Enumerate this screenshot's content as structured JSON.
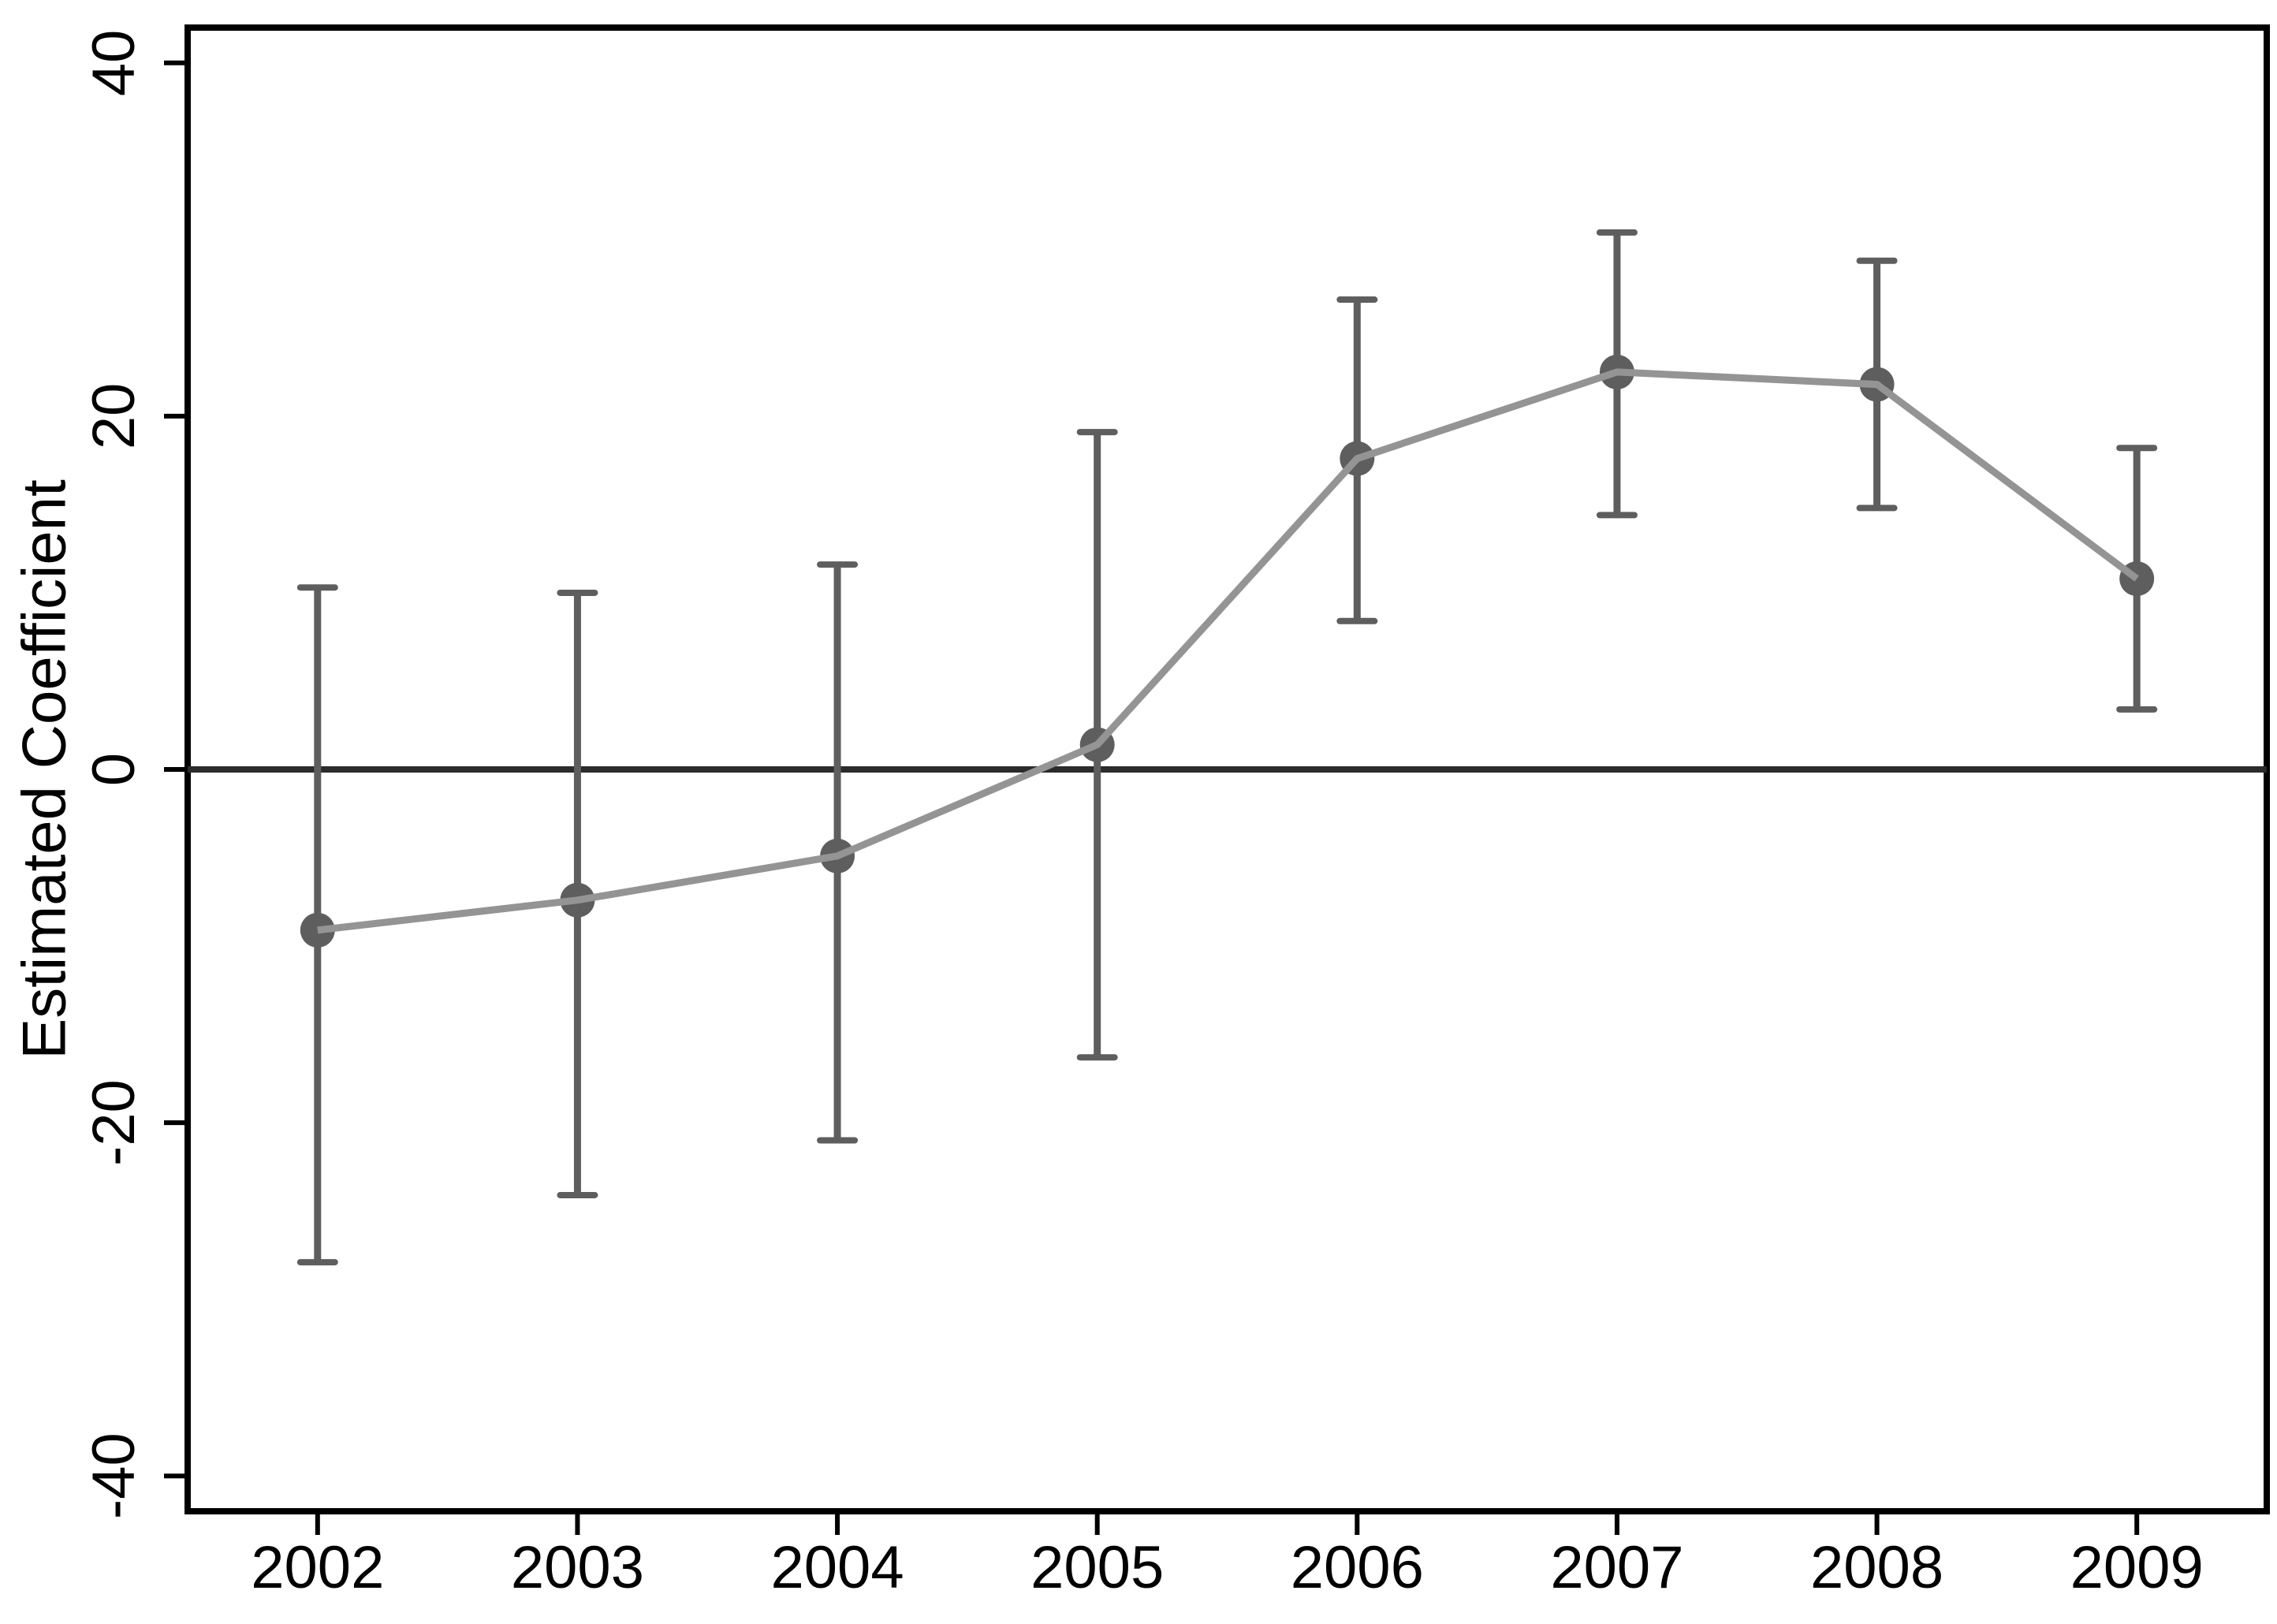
{
  "figure": {
    "kind": "stata-style coefficient plot with 95% confidence intervals",
    "background": "#ffffff"
  },
  "chart_data": {
    "type": "line",
    "title": "",
    "xlabel": "",
    "ylabel": "Estimated Coefficient",
    "x": [
      2002,
      2003,
      2004,
      2005,
      2006,
      2007,
      2008,
      2009
    ],
    "series": [
      {
        "name": "Estimated Coefficient",
        "values": [
          -9.1,
          -7.4,
          -4.9,
          1.4,
          17.6,
          22.5,
          21.8,
          10.8
        ],
        "ci_low": [
          -27.9,
          -24.1,
          -21.0,
          -16.3,
          8.4,
          14.4,
          14.8,
          3.4
        ],
        "ci_high": [
          10.3,
          10.0,
          11.6,
          19.1,
          26.6,
          30.4,
          28.8,
          18.2
        ]
      }
    ],
    "xticks": [
      2002,
      2003,
      2004,
      2005,
      2006,
      2007,
      2008,
      2009
    ],
    "yticks": [
      -40,
      -20,
      0,
      20,
      40
    ],
    "xlim": [
      2001.5,
      2009.5
    ],
    "ylim": [
      -42,
      42
    ],
    "reference_line_y": 0,
    "grid": "off",
    "legend": "none",
    "colors": {
      "marker": "#5e5e5e",
      "error_bar": "#5e5e5e",
      "line": "#949494",
      "axis": "#000000",
      "zero_line": "#2b2b2b",
      "background": "#ffffff"
    }
  }
}
